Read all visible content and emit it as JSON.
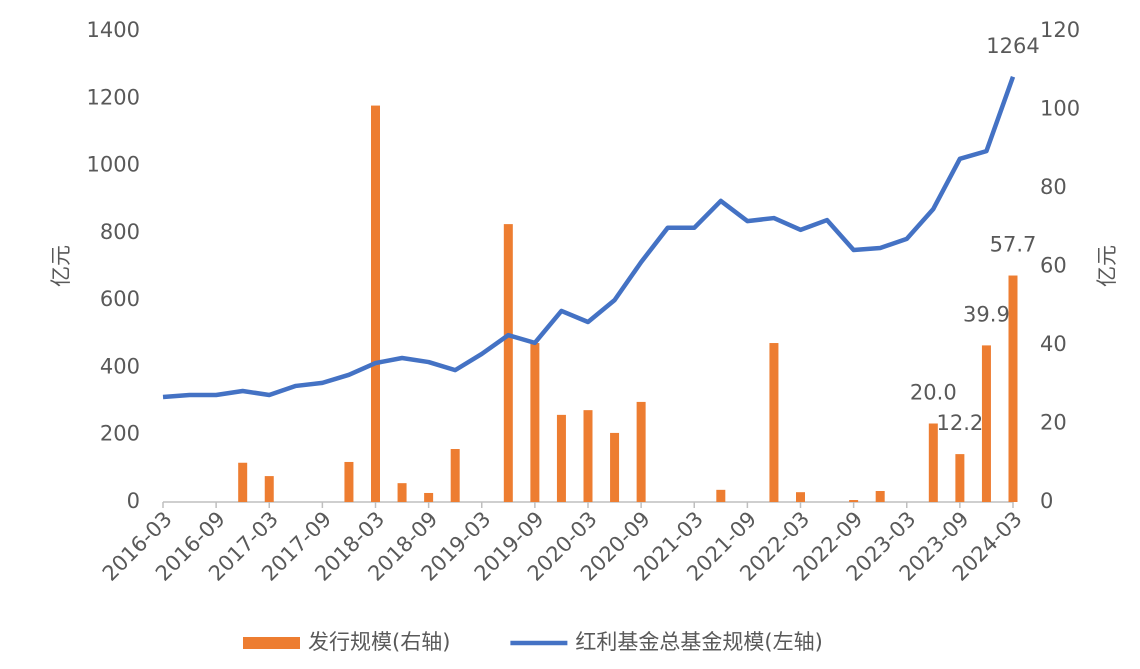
{
  "chart_data": {
    "type": "bar_line",
    "categories": [
      "2016-03",
      null,
      "2016-09",
      null,
      "2017-03",
      null,
      "2017-09",
      null,
      "2018-03",
      null,
      "2018-09",
      null,
      "2019-03",
      null,
      "2019-09",
      null,
      "2020-03",
      null,
      "2020-09",
      null,
      "2021-03",
      null,
      "2021-09",
      null,
      "2022-03",
      null,
      "2022-09",
      null,
      "2023-03",
      null,
      "2023-09",
      null,
      "2024-03"
    ],
    "series": [
      {
        "name": "发行规模(右轴)",
        "type": "bar",
        "axis": "y2",
        "color": "#ed7d31",
        "values": [
          0,
          0,
          0,
          10,
          6.6,
          0,
          0,
          10.2,
          101,
          4.8,
          2.3,
          13.5,
          0,
          70.8,
          40.5,
          22.2,
          23.4,
          17.6,
          25.5,
          0,
          0,
          3.1,
          0,
          40.5,
          2.5,
          0,
          0.5,
          2.8,
          0,
          20,
          12.2,
          39.9,
          57.7
        ],
        "value_labels": [
          null,
          null,
          null,
          null,
          null,
          null,
          null,
          null,
          null,
          null,
          null,
          null,
          null,
          null,
          null,
          null,
          null,
          null,
          null,
          null,
          null,
          null,
          null,
          null,
          null,
          null,
          null,
          null,
          null,
          "20.0",
          "12.2",
          "39.9",
          "57.7"
        ]
      },
      {
        "name": "红利基金总基金规模(左轴)",
        "type": "line",
        "axis": "y",
        "color": "#4472c4",
        "values": [
          312,
          318,
          318,
          330,
          318,
          345,
          354,
          378,
          413,
          428,
          416,
          392,
          440,
          496,
          473,
          568,
          535,
          600,
          713,
          815,
          815,
          895,
          835,
          844,
          809,
          838,
          749,
          755,
          782,
          871,
          1020,
          1043,
          1264
        ],
        "value_labels": [
          null,
          null,
          null,
          null,
          null,
          null,
          null,
          null,
          null,
          null,
          null,
          null,
          null,
          null,
          null,
          null,
          null,
          null,
          null,
          null,
          null,
          null,
          null,
          null,
          null,
          null,
          null,
          null,
          null,
          null,
          null,
          null,
          "1264"
        ]
      }
    ],
    "y_label": "亿元",
    "y2_label": "亿元",
    "ylim": [
      0,
      1400
    ],
    "yticks": [
      0,
      200,
      400,
      600,
      800,
      1000,
      1200,
      1400
    ],
    "y2lim": [
      0,
      120
    ],
    "y2ticks": [
      0,
      20,
      40,
      60,
      80,
      100,
      120
    ],
    "grid": false,
    "legend": "bottom"
  }
}
